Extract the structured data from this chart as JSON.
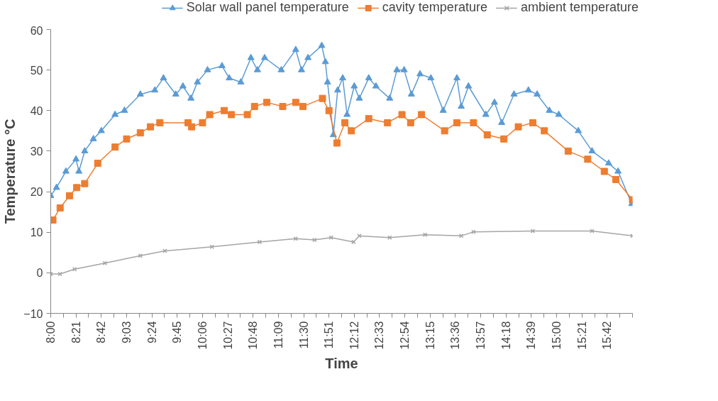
{
  "chart_data": {
    "type": "line",
    "xlabel": "Time",
    "ylabel": "Temperature °C",
    "xlim": [
      8,
      16.05
    ],
    "ylim": [
      -10,
      60
    ],
    "yticks": [
      -10,
      0,
      10,
      20,
      30,
      40,
      50,
      60
    ],
    "xticks": [
      {
        "value": 8,
        "label": "8:00"
      },
      {
        "value": 8.35,
        "label": "8:21"
      },
      {
        "value": 8.7,
        "label": "8:42"
      },
      {
        "value": 9.05,
        "label": "9:03"
      },
      {
        "value": 9.4,
        "label": "9:24"
      },
      {
        "value": 9.75,
        "label": "9:45"
      },
      {
        "value": 10.1,
        "label": "10:06"
      },
      {
        "value": 10.45,
        "label": "10:27"
      },
      {
        "value": 10.8,
        "label": "10:48"
      },
      {
        "value": 11.15,
        "label": "11:09"
      },
      {
        "value": 11.5,
        "label": "11:30"
      },
      {
        "value": 11.85,
        "label": "11:51"
      },
      {
        "value": 12.2,
        "label": "12:12"
      },
      {
        "value": 12.55,
        "label": "12:33"
      },
      {
        "value": 12.9,
        "label": "12:54"
      },
      {
        "value": 13.25,
        "label": "13:15"
      },
      {
        "value": 13.6,
        "label": "13:36"
      },
      {
        "value": 13.95,
        "label": "13:57"
      },
      {
        "value": 14.3,
        "label": "14:18"
      },
      {
        "value": 14.65,
        "label": "14:39"
      },
      {
        "value": 15,
        "label": "15:00"
      },
      {
        "value": 15.35,
        "label": "15:21"
      },
      {
        "value": 15.7,
        "label": "15:42"
      },
      {
        "value": 8.175,
        "label": null
      },
      {
        "value": 8.525,
        "label": null
      },
      {
        "value": 8.875,
        "label": null
      },
      {
        "value": 9.225,
        "label": null
      },
      {
        "value": 9.575,
        "label": null
      },
      {
        "value": 9.925,
        "label": null
      },
      {
        "value": 10.275,
        "label": null
      },
      {
        "value": 10.625,
        "label": null
      },
      {
        "value": 10.975,
        "label": null
      },
      {
        "value": 11.325,
        "label": null
      },
      {
        "value": 11.675,
        "label": null
      },
      {
        "value": 12.025,
        "label": null
      },
      {
        "value": 12.375,
        "label": null
      },
      {
        "value": 12.725,
        "label": null
      },
      {
        "value": 13.075,
        "label": null
      },
      {
        "value": 13.425,
        "label": null
      },
      {
        "value": 13.775,
        "label": null
      },
      {
        "value": 14.125,
        "label": null
      },
      {
        "value": 14.475,
        "label": null
      },
      {
        "value": 14.825,
        "label": null
      },
      {
        "value": 15.175,
        "label": null
      },
      {
        "value": 15.525,
        "label": null
      },
      {
        "value": 15.875,
        "label": null
      },
      {
        "value": 16.05,
        "label": null
      }
    ],
    "grid": false,
    "legend": "top",
    "line_style": "solid",
    "series": [
      {
        "name": "Solar wall panel temperature",
        "color": "#5b9bd5",
        "marker": "triangle",
        "x": [
          8.0,
          8.08,
          8.21,
          8.35,
          8.39,
          8.47,
          8.59,
          8.7,
          8.89,
          9.02,
          9.24,
          9.44,
          9.56,
          9.73,
          9.83,
          9.94,
          10.03,
          10.17,
          10.37,
          10.47,
          10.63,
          10.77,
          10.86,
          10.96,
          11.19,
          11.39,
          11.47,
          11.56,
          11.75,
          11.8,
          11.83,
          11.91,
          11.97,
          12.04,
          12.1,
          12.2,
          12.27,
          12.4,
          12.5,
          12.69,
          12.79,
          12.89,
          12.99,
          13.11,
          13.26,
          13.43,
          13.62,
          13.68,
          13.78,
          14.02,
          14.14,
          14.24,
          14.41,
          14.61,
          14.73,
          14.9,
          15.03,
          15.3,
          15.49,
          15.72,
          15.85,
          16.04
        ],
        "values": [
          19,
          21,
          25,
          28,
          25,
          30,
          33,
          35,
          39,
          40,
          44,
          45,
          48,
          44,
          46,
          43,
          47,
          50,
          51,
          48,
          47,
          53,
          50,
          53,
          50,
          55,
          50,
          53,
          56,
          52,
          47,
          34,
          45,
          48,
          39,
          46,
          43,
          48,
          46,
          43,
          50,
          50,
          44,
          49,
          48,
          40,
          48,
          41,
          46,
          39,
          42,
          37,
          44,
          45,
          44,
          40,
          39,
          35,
          30,
          27,
          25,
          17
        ]
      },
      {
        "name": "cavity temperature",
        "color": "#ed7d31",
        "marker": "square",
        "x": [
          8.03,
          8.13,
          8.26,
          8.36,
          8.47,
          8.65,
          8.89,
          9.05,
          9.24,
          9.38,
          9.51,
          9.9,
          9.95,
          10.1,
          10.2,
          10.4,
          10.5,
          10.72,
          10.82,
          10.99,
          11.21,
          11.39,
          11.49,
          11.76,
          11.85,
          11.96,
          12.07,
          12.16,
          12.4,
          12.66,
          12.86,
          12.98,
          13.13,
          13.45,
          13.62,
          13.85,
          14.04,
          14.27,
          14.47,
          14.67,
          14.83,
          15.16,
          15.43,
          15.66,
          15.82,
          16.05
        ],
        "values": [
          13,
          16,
          19,
          21,
          22,
          27,
          31,
          33,
          34.5,
          36,
          37,
          37,
          36,
          37,
          39,
          40,
          39,
          39,
          41,
          42,
          41,
          42,
          41,
          43,
          40,
          32,
          37,
          35,
          38,
          37,
          39,
          37,
          39,
          35,
          37,
          37,
          34,
          33,
          36,
          37,
          35,
          30,
          28,
          25,
          23,
          18
        ]
      },
      {
        "name": "ambient temperature",
        "color": "#a5a5a5",
        "marker": "cross",
        "x": [
          8.0,
          8.13,
          8.33,
          8.75,
          9.24,
          9.58,
          10.23,
          10.89,
          11.39,
          11.65,
          11.88,
          12.19,
          12.27,
          12.69,
          13.18,
          13.68,
          13.85,
          14.67,
          15.49,
          16.05
        ],
        "values": [
          -0.3,
          -0.3,
          0.9,
          2.4,
          4.2,
          5.4,
          6.4,
          7.6,
          8.4,
          8.1,
          8.7,
          7.6,
          9.1,
          8.7,
          9.4,
          9.1,
          10.1,
          10.3,
          10.3,
          9.1
        ]
      }
    ]
  }
}
